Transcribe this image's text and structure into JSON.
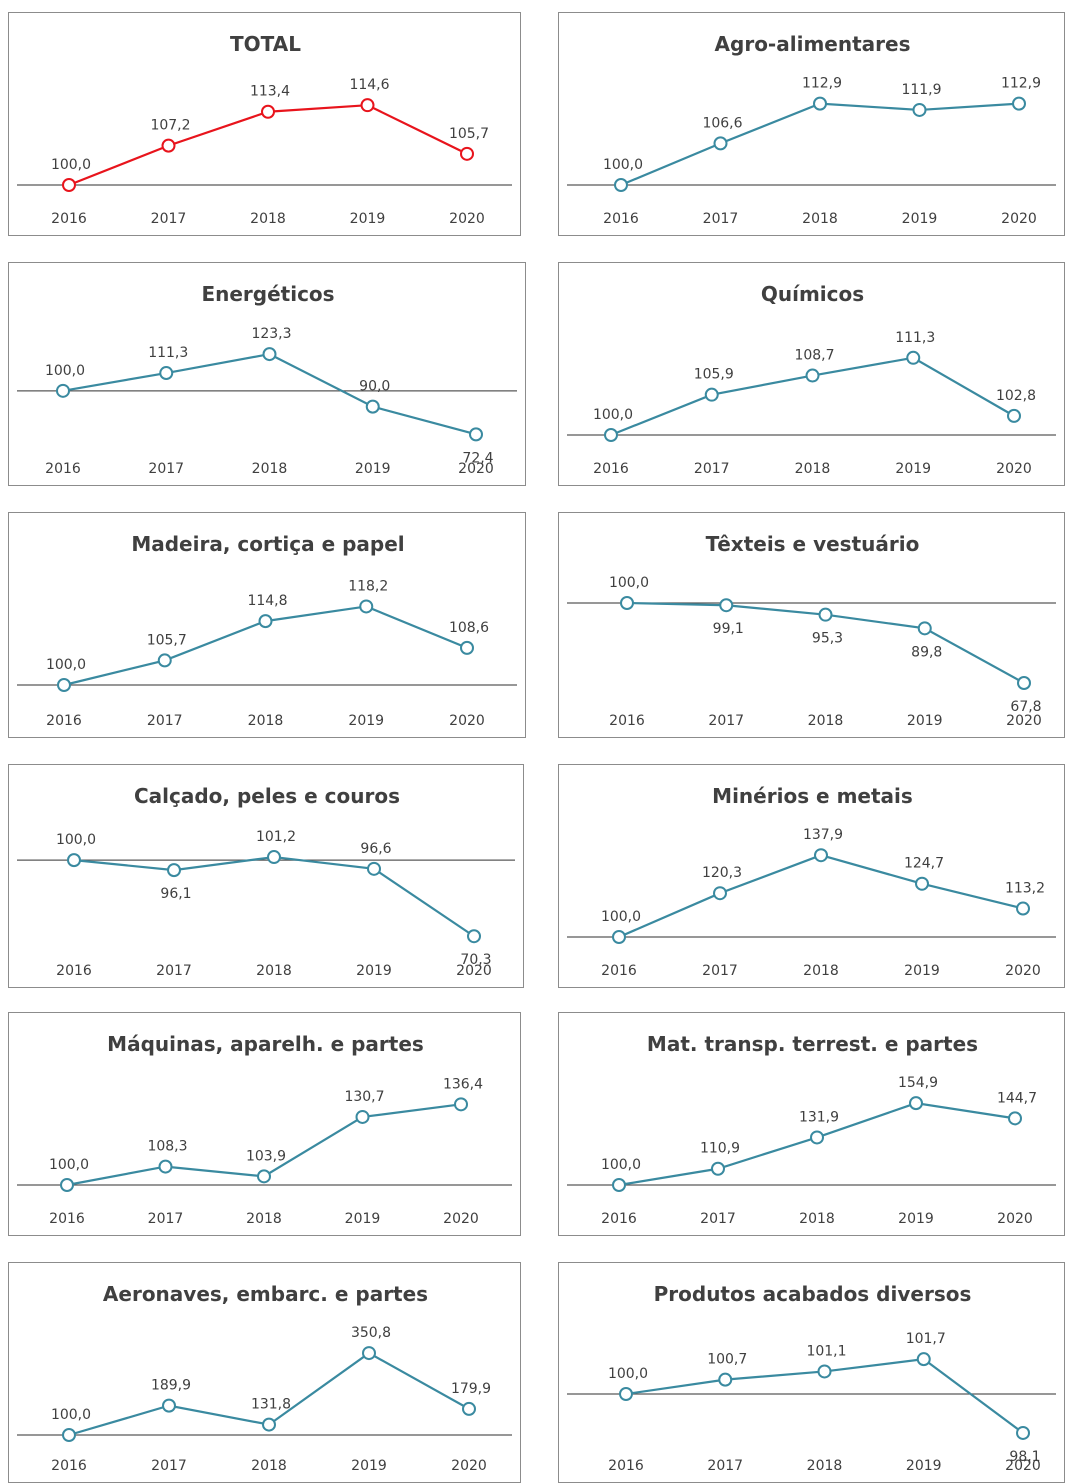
{
  "colors": {
    "total_line": "#e8141c",
    "category_line": "#3a8aa0",
    "baseline": "#595959"
  },
  "chart_data": [
    {
      "type": "line",
      "title": "TOTAL",
      "x": [
        "2016",
        "2017",
        "2018",
        "2019",
        "2020"
      ],
      "values": [
        100.0,
        107.2,
        113.4,
        114.6,
        105.7
      ],
      "value_labels": [
        "100,0",
        "107,2",
        "113,4",
        "114,6",
        "105,7"
      ],
      "ylim": [
        100,
        115
      ],
      "baseline": 100
    },
    {
      "type": "line",
      "title": "Agro-alimentares",
      "x": [
        "2016",
        "2017",
        "2018",
        "2019",
        "2020"
      ],
      "values": [
        100.0,
        106.6,
        112.9,
        111.9,
        112.9
      ],
      "value_labels": [
        "100,0",
        "106,6",
        "112,9",
        "111,9",
        "112,9"
      ],
      "ylim": [
        100,
        113
      ],
      "baseline": 100
    },
    {
      "type": "line",
      "title": "Energéticos",
      "x": [
        "2016",
        "2017",
        "2018",
        "2019",
        "2020"
      ],
      "values": [
        100.0,
        111.3,
        123.3,
        90.0,
        72.4
      ],
      "value_labels": [
        "100,0",
        "111,3",
        "123,3",
        "90,0",
        "72,4"
      ],
      "ylim": [
        72,
        124
      ],
      "baseline": 100
    },
    {
      "type": "line",
      "title": "Químicos",
      "x": [
        "2016",
        "2017",
        "2018",
        "2019",
        "2020"
      ],
      "values": [
        100.0,
        105.9,
        108.7,
        111.3,
        102.8
      ],
      "value_labels": [
        "100,0",
        "105,9",
        "108,7",
        "111,3",
        "102,8"
      ],
      "ylim": [
        100,
        112
      ],
      "baseline": 100
    },
    {
      "type": "line",
      "title": "Madeira, cortiça e papel",
      "x": [
        "2016",
        "2017",
        "2018",
        "2019",
        "2020"
      ],
      "values": [
        100.0,
        105.7,
        114.8,
        118.2,
        108.6
      ],
      "value_labels": [
        "100,0",
        "105,7",
        "114,8",
        "118,2",
        "108,6"
      ],
      "ylim": [
        100,
        119
      ],
      "baseline": 100
    },
    {
      "type": "line",
      "title": "Têxteis e vestuário",
      "x": [
        "2016",
        "2017",
        "2018",
        "2019",
        "2020"
      ],
      "values": [
        100.0,
        99.1,
        95.3,
        89.8,
        67.8
      ],
      "value_labels": [
        "100,0",
        "99,1",
        "95,3",
        "89,8",
        "67,8"
      ],
      "ylim": [
        67,
        100
      ],
      "baseline": 100
    },
    {
      "type": "line",
      "title": "Calçado, peles e couros",
      "x": [
        "2016",
        "2017",
        "2018",
        "2019",
        "2020"
      ],
      "values": [
        100.0,
        96.1,
        101.2,
        96.6,
        70.3
      ],
      "value_labels": [
        "100,0",
        "96,1",
        "101,2",
        "96,6",
        "70,3"
      ],
      "ylim": [
        70,
        102
      ],
      "baseline": 100
    },
    {
      "type": "line",
      "title": "Minérios e metais",
      "x": [
        "2016",
        "2017",
        "2018",
        "2019",
        "2020"
      ],
      "values": [
        100.0,
        120.3,
        137.9,
        124.7,
        113.2
      ],
      "value_labels": [
        "100,0",
        "120,3",
        "137,9",
        "124,7",
        "113,2"
      ],
      "ylim": [
        100,
        138
      ],
      "baseline": 100
    },
    {
      "type": "line",
      "title": "Máquinas, aparelh. e partes",
      "x": [
        "2016",
        "2017",
        "2018",
        "2019",
        "2020"
      ],
      "values": [
        100.0,
        108.3,
        103.9,
        130.7,
        136.4
      ],
      "value_labels": [
        "100,0",
        "108,3",
        "103,9",
        "130,7",
        "136,4"
      ],
      "ylim": [
        100,
        137
      ],
      "baseline": 100
    },
    {
      "type": "line",
      "title": "Mat. transp. terrest. e partes",
      "x": [
        "2016",
        "2017",
        "2018",
        "2019",
        "2020"
      ],
      "values": [
        100.0,
        110.9,
        131.9,
        154.9,
        144.7
      ],
      "value_labels": [
        "100,0",
        "110,9",
        "131,9",
        "154,9",
        "144,7"
      ],
      "ylim": [
        100,
        155
      ],
      "baseline": 100
    },
    {
      "type": "line",
      "title": "Aeronaves, embarc. e partes",
      "x": [
        "2016",
        "2017",
        "2018",
        "2019",
        "2020"
      ],
      "values": [
        100.0,
        189.9,
        131.8,
        350.8,
        179.9
      ],
      "value_labels": [
        "100,0",
        "189,9",
        "131,8",
        "350,8",
        "179,9"
      ],
      "ylim": [
        100,
        351
      ],
      "baseline": 100
    },
    {
      "type": "line",
      "title": "Produtos acabados diversos",
      "x": [
        "2016",
        "2017",
        "2018",
        "2019",
        "2020"
      ],
      "values": [
        100.0,
        100.7,
        101.1,
        101.7,
        98.1
      ],
      "value_labels": [
        "100,0",
        "100,7",
        "101,1",
        "101,7",
        "98,1"
      ],
      "ylim": [
        98,
        102
      ],
      "baseline": 100
    }
  ]
}
